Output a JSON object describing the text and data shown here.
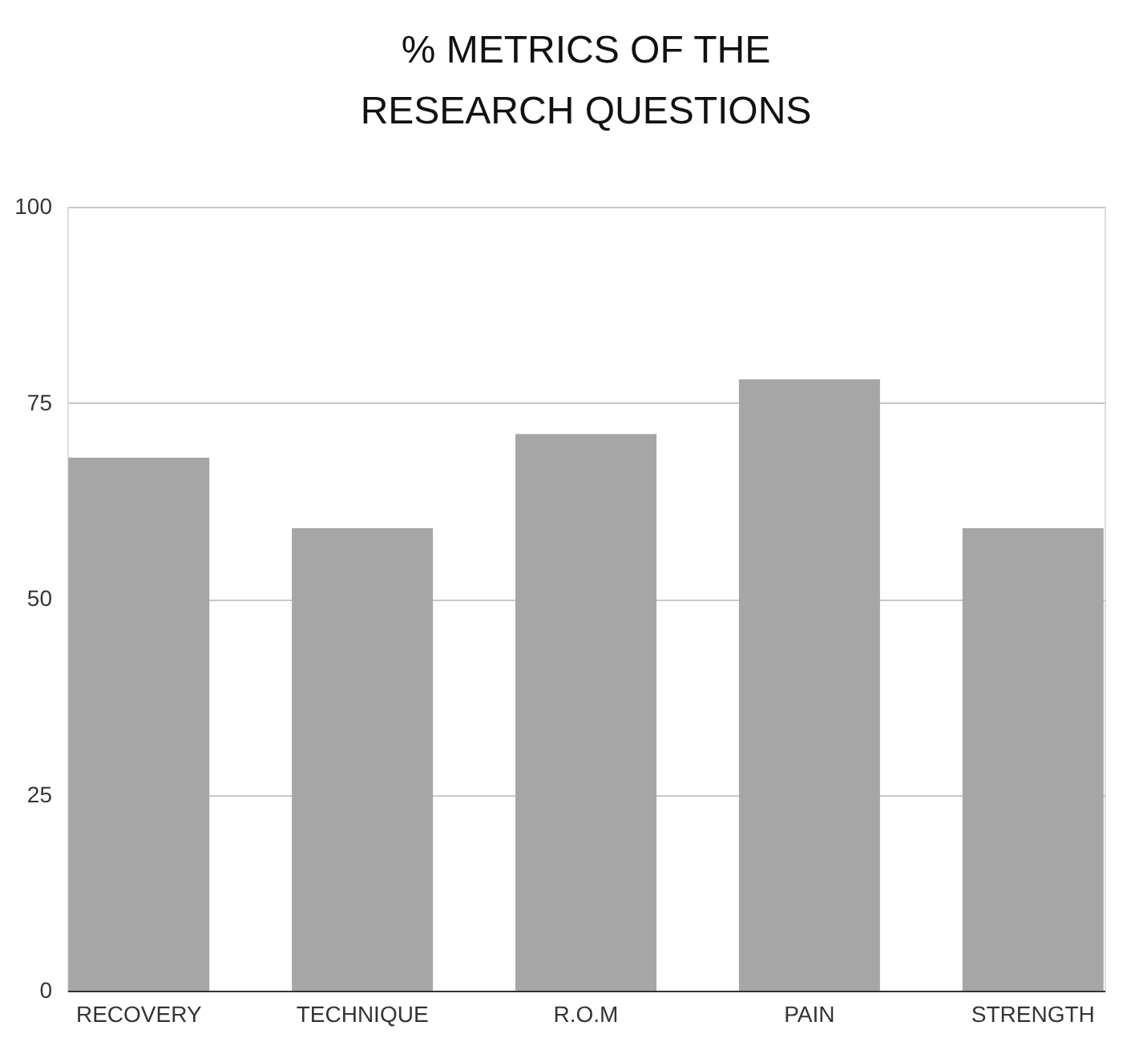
{
  "chart_data": {
    "type": "bar",
    "title": "% METRICS OF THE RESEARCH QUESTIONS",
    "categories": [
      "RECOVERY",
      "TECHNIQUE",
      "R.O.M",
      "PAIN",
      "STRENGTH"
    ],
    "values": [
      68,
      59,
      71,
      78,
      59
    ],
    "color": "#a6a6a6",
    "ylim": [
      0,
      100
    ],
    "yticks": [
      0,
      25,
      50,
      75,
      100
    ],
    "grid": "y"
  }
}
